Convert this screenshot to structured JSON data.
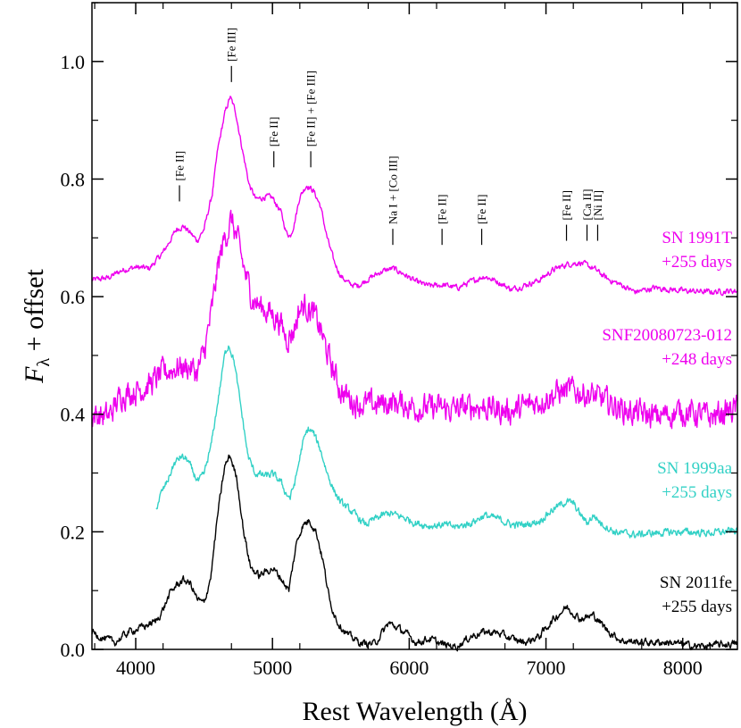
{
  "chart_data": {
    "type": "line",
    "title": "",
    "xlabel": "Rest Wavelength (Å)",
    "ylabel_main": "F",
    "ylabel_sub": "λ",
    "ylabel_rest": " + offset",
    "xlim": [
      3680,
      8400
    ],
    "ylim": [
      0.0,
      1.1
    ],
    "xticks": [
      4000,
      5000,
      6000,
      7000,
      8000
    ],
    "xtick_labels": [
      "4000",
      "5000",
      "6000",
      "7000",
      "8000"
    ],
    "yticks": [
      0.0,
      0.2,
      0.4,
      0.6,
      0.8,
      1.0
    ],
    "ytick_labels": [
      "0.0",
      "0.2",
      "0.4",
      "0.6",
      "0.8",
      "1.0"
    ],
    "series": [
      {
        "name": "SN 1991T",
        "label_lines": [
          "SN 1991T",
          "+255 days"
        ],
        "color": "#ee00ee",
        "noise": 0.004,
        "points": [
          [
            3680,
            0.628
          ],
          [
            3800,
            0.632
          ],
          [
            3900,
            0.645
          ],
          [
            4000,
            0.65
          ],
          [
            4100,
            0.648
          ],
          [
            4200,
            0.675
          ],
          [
            4300,
            0.715
          ],
          [
            4350,
            0.72
          ],
          [
            4400,
            0.708
          ],
          [
            4450,
            0.695
          ],
          [
            4500,
            0.715
          ],
          [
            4560,
            0.775
          ],
          [
            4600,
            0.85
          ],
          [
            4650,
            0.91
          ],
          [
            4690,
            0.94
          ],
          [
            4730,
            0.915
          ],
          [
            4780,
            0.85
          ],
          [
            4830,
            0.79
          ],
          [
            4880,
            0.765
          ],
          [
            4950,
            0.77
          ],
          [
            5000,
            0.768
          ],
          [
            5060,
            0.745
          ],
          [
            5100,
            0.71
          ],
          [
            5130,
            0.703
          ],
          [
            5160,
            0.725
          ],
          [
            5200,
            0.77
          ],
          [
            5250,
            0.79
          ],
          [
            5300,
            0.78
          ],
          [
            5350,
            0.755
          ],
          [
            5400,
            0.7
          ],
          [
            5450,
            0.66
          ],
          [
            5500,
            0.635
          ],
          [
            5560,
            0.622
          ],
          [
            5620,
            0.618
          ],
          [
            5700,
            0.63
          ],
          [
            5800,
            0.643
          ],
          [
            5880,
            0.648
          ],
          [
            5950,
            0.64
          ],
          [
            6050,
            0.625
          ],
          [
            6150,
            0.618
          ],
          [
            6250,
            0.62
          ],
          [
            6350,
            0.615
          ],
          [
            6450,
            0.625
          ],
          [
            6550,
            0.635
          ],
          [
            6650,
            0.625
          ],
          [
            6750,
            0.612
          ],
          [
            6850,
            0.62
          ],
          [
            6950,
            0.628
          ],
          [
            7050,
            0.645
          ],
          [
            7150,
            0.655
          ],
          [
            7250,
            0.658
          ],
          [
            7350,
            0.648
          ],
          [
            7450,
            0.63
          ],
          [
            7550,
            0.62
          ],
          [
            7650,
            0.608
          ],
          [
            7800,
            0.615
          ],
          [
            8000,
            0.61
          ],
          [
            8200,
            0.608
          ],
          [
            8400,
            0.61
          ]
        ]
      },
      {
        "name": "SNF20080723-012",
        "label_lines": [
          "SNF20080723-012",
          "+248 days"
        ],
        "color": "#ee00ee",
        "noise": 0.018,
        "points": [
          [
            3680,
            0.4
          ],
          [
            3800,
            0.395
          ],
          [
            3900,
            0.435
          ],
          [
            4000,
            0.44
          ],
          [
            4100,
            0.45
          ],
          [
            4200,
            0.47
          ],
          [
            4300,
            0.48
          ],
          [
            4400,
            0.48
          ],
          [
            4450,
            0.47
          ],
          [
            4500,
            0.505
          ],
          [
            4560,
            0.58
          ],
          [
            4600,
            0.65
          ],
          [
            4650,
            0.7
          ],
          [
            4700,
            0.73
          ],
          [
            4750,
            0.69
          ],
          [
            4800,
            0.64
          ],
          [
            4850,
            0.6
          ],
          [
            4900,
            0.585
          ],
          [
            5000,
            0.57
          ],
          [
            5050,
            0.56
          ],
          [
            5100,
            0.53
          ],
          [
            5150,
            0.54
          ],
          [
            5200,
            0.58
          ],
          [
            5250,
            0.585
          ],
          [
            5300,
            0.57
          ],
          [
            5350,
            0.545
          ],
          [
            5400,
            0.505
          ],
          [
            5450,
            0.47
          ],
          [
            5500,
            0.44
          ],
          [
            5600,
            0.42
          ],
          [
            5700,
            0.415
          ],
          [
            5800,
            0.418
          ],
          [
            5900,
            0.42
          ],
          [
            6000,
            0.415
          ],
          [
            6100,
            0.41
          ],
          [
            6200,
            0.41
          ],
          [
            6300,
            0.408
          ],
          [
            6400,
            0.41
          ],
          [
            6500,
            0.415
          ],
          [
            6600,
            0.41
          ],
          [
            6700,
            0.405
          ],
          [
            6800,
            0.408
          ],
          [
            6900,
            0.418
          ],
          [
            7000,
            0.428
          ],
          [
            7100,
            0.438
          ],
          [
            7200,
            0.44
          ],
          [
            7300,
            0.435
          ],
          [
            7400,
            0.425
          ],
          [
            7500,
            0.415
          ],
          [
            7600,
            0.405
          ],
          [
            7800,
            0.395
          ],
          [
            8000,
            0.405
          ],
          [
            8200,
            0.395
          ],
          [
            8400,
            0.41
          ]
        ]
      },
      {
        "name": "SN 1999aa",
        "label_lines": [
          "SN 1999aa",
          "+255 days"
        ],
        "color": "#33d1c6",
        "noise": 0.005,
        "points": [
          [
            4150,
            0.24
          ],
          [
            4180,
            0.262
          ],
          [
            4230,
            0.285
          ],
          [
            4280,
            0.315
          ],
          [
            4330,
            0.328
          ],
          [
            4380,
            0.322
          ],
          [
            4420,
            0.3
          ],
          [
            4460,
            0.285
          ],
          [
            4500,
            0.298
          ],
          [
            4550,
            0.345
          ],
          [
            4600,
            0.42
          ],
          [
            4650,
            0.5
          ],
          [
            4680,
            0.52
          ],
          [
            4720,
            0.49
          ],
          [
            4770,
            0.41
          ],
          [
            4820,
            0.33
          ],
          [
            4870,
            0.3
          ],
          [
            4950,
            0.295
          ],
          [
            5000,
            0.298
          ],
          [
            5060,
            0.285
          ],
          [
            5100,
            0.265
          ],
          [
            5130,
            0.258
          ],
          [
            5170,
            0.29
          ],
          [
            5220,
            0.35
          ],
          [
            5260,
            0.375
          ],
          [
            5300,
            0.368
          ],
          [
            5350,
            0.34
          ],
          [
            5400,
            0.3
          ],
          [
            5450,
            0.27
          ],
          [
            5500,
            0.25
          ],
          [
            5600,
            0.23
          ],
          [
            5680,
            0.212
          ],
          [
            5750,
            0.222
          ],
          [
            5850,
            0.232
          ],
          [
            5950,
            0.225
          ],
          [
            6050,
            0.215
          ],
          [
            6150,
            0.21
          ],
          [
            6250,
            0.212
          ],
          [
            6350,
            0.208
          ],
          [
            6450,
            0.215
          ],
          [
            6550,
            0.228
          ],
          [
            6650,
            0.222
          ],
          [
            6750,
            0.212
          ],
          [
            6850,
            0.212
          ],
          [
            6950,
            0.218
          ],
          [
            7050,
            0.238
          ],
          [
            7150,
            0.252
          ],
          [
            7200,
            0.248
          ],
          [
            7250,
            0.23
          ],
          [
            7300,
            0.215
          ],
          [
            7350,
            0.228
          ],
          [
            7400,
            0.215
          ],
          [
            7500,
            0.2
          ],
          [
            7650,
            0.195
          ],
          [
            7800,
            0.198
          ],
          [
            8000,
            0.2
          ],
          [
            8200,
            0.198
          ],
          [
            8400,
            0.202
          ]
        ]
      },
      {
        "name": "SN 2011fe",
        "label_lines": [
          "SN 2011fe",
          "+255 days"
        ],
        "color": "#000000",
        "noise": 0.005,
        "points": [
          [
            3680,
            0.03
          ],
          [
            3750,
            0.02
          ],
          [
            3850,
            0.012
          ],
          [
            3950,
            0.03
          ],
          [
            4050,
            0.038
          ],
          [
            4150,
            0.048
          ],
          [
            4200,
            0.068
          ],
          [
            4250,
            0.095
          ],
          [
            4300,
            0.11
          ],
          [
            4350,
            0.118
          ],
          [
            4400,
            0.112
          ],
          [
            4450,
            0.085
          ],
          [
            4500,
            0.078
          ],
          [
            4550,
            0.125
          ],
          [
            4600,
            0.23
          ],
          [
            4650,
            0.31
          ],
          [
            4690,
            0.33
          ],
          [
            4740,
            0.29
          ],
          [
            4790,
            0.2
          ],
          [
            4840,
            0.14
          ],
          [
            4900,
            0.125
          ],
          [
            4950,
            0.132
          ],
          [
            5000,
            0.138
          ],
          [
            5060,
            0.122
          ],
          [
            5120,
            0.1
          ],
          [
            5150,
            0.145
          ],
          [
            5180,
            0.185
          ],
          [
            5220,
            0.21
          ],
          [
            5270,
            0.22
          ],
          [
            5320,
            0.2
          ],
          [
            5370,
            0.15
          ],
          [
            5420,
            0.08
          ],
          [
            5480,
            0.045
          ],
          [
            5550,
            0.025
          ],
          [
            5650,
            0.01
          ],
          [
            5750,
            0.01
          ],
          [
            5850,
            0.045
          ],
          [
            5950,
            0.032
          ],
          [
            6050,
            0.012
          ],
          [
            6150,
            0.018
          ],
          [
            6250,
            0.008
          ],
          [
            6350,
            0.005
          ],
          [
            6450,
            0.022
          ],
          [
            6550,
            0.03
          ],
          [
            6650,
            0.028
          ],
          [
            6750,
            0.018
          ],
          [
            6850,
            0.012
          ],
          [
            6950,
            0.022
          ],
          [
            7050,
            0.05
          ],
          [
            7150,
            0.072
          ],
          [
            7200,
            0.062
          ],
          [
            7250,
            0.052
          ],
          [
            7300,
            0.055
          ],
          [
            7350,
            0.058
          ],
          [
            7450,
            0.032
          ],
          [
            7550,
            0.015
          ],
          [
            7700,
            0.012
          ],
          [
            7900,
            0.012
          ],
          [
            8100,
            0.005
          ],
          [
            8400,
            0.01
          ]
        ]
      }
    ],
    "line_ids": [
      {
        "label": "[Fe II]",
        "wavelength": 4320,
        "y": 0.762
      },
      {
        "label": "[Fe III]",
        "wavelength": 4700,
        "y": 0.965
      },
      {
        "label": "[Fe II]",
        "wavelength": 5010,
        "y": 0.82
      },
      {
        "label": "[Fe II] + [Fe III]",
        "wavelength": 5280,
        "y": 0.82
      },
      {
        "label": "Na I + [Co III]",
        "wavelength": 5880,
        "y": 0.688
      },
      {
        "label": "[Fe II]",
        "wavelength": 6240,
        "y": 0.688
      },
      {
        "label": "[Fe II]",
        "wavelength": 6530,
        "y": 0.688
      },
      {
        "label": "[Fe II]",
        "wavelength": 7150,
        "y": 0.695
      },
      {
        "label": "[Ca II]",
        "wavelength": 7300,
        "y": 0.695
      },
      {
        "label": "[Ni II]",
        "wavelength": 7378,
        "y": 0.695
      }
    ]
  }
}
